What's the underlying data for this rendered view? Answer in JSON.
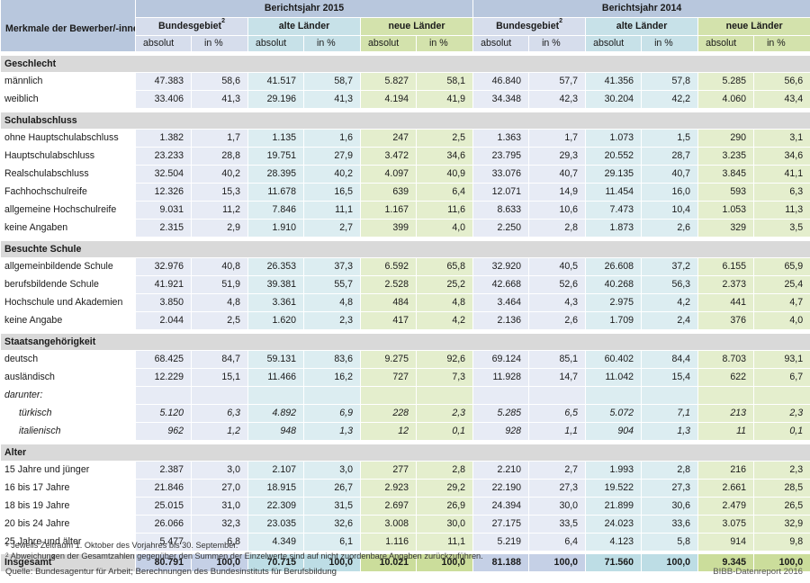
{
  "header": {
    "label_col": "Merkmale der Bewerber/-innen",
    "years": [
      "Berichtsjahr 2015",
      "Berichtsjahr 2014"
    ],
    "regions": [
      {
        "name": "Bundesgebiet",
        "sup": "2"
      },
      {
        "name": "alte Länder",
        "sup": ""
      },
      {
        "name": "neue Länder",
        "sup": ""
      }
    ],
    "abs_label": "absolut",
    "pct_label": "in %"
  },
  "sections": [
    {
      "title": "Geschlecht",
      "rows": [
        {
          "label": "männlich",
          "values": [
            "47.383",
            "58,6",
            "41.517",
            "58,7",
            "5.827",
            "58,1",
            "46.840",
            "57,7",
            "41.356",
            "57,8",
            "5.285",
            "56,6"
          ]
        },
        {
          "label": "weiblich",
          "values": [
            "33.406",
            "41,3",
            "29.196",
            "41,3",
            "4.194",
            "41,9",
            "34.348",
            "42,3",
            "30.204",
            "42,2",
            "4.060",
            "43,4"
          ]
        }
      ]
    },
    {
      "title": "Schulabschluss",
      "rows": [
        {
          "label": "ohne Hauptschulabschluss",
          "values": [
            "1.382",
            "1,7",
            "1.135",
            "1,6",
            "247",
            "2,5",
            "1.363",
            "1,7",
            "1.073",
            "1,5",
            "290",
            "3,1"
          ]
        },
        {
          "label": "Hauptschulabschluss",
          "values": [
            "23.233",
            "28,8",
            "19.751",
            "27,9",
            "3.472",
            "34,6",
            "23.795",
            "29,3",
            "20.552",
            "28,7",
            "3.235",
            "34,6"
          ]
        },
        {
          "label": "Realschulabschluss",
          "values": [
            "32.504",
            "40,2",
            "28.395",
            "40,2",
            "4.097",
            "40,9",
            "33.076",
            "40,7",
            "29.135",
            "40,7",
            "3.845",
            "41,1"
          ]
        },
        {
          "label": "Fachhochschulreife",
          "values": [
            "12.326",
            "15,3",
            "11.678",
            "16,5",
            "639",
            "6,4",
            "12.071",
            "14,9",
            "11.454",
            "16,0",
            "593",
            "6,3"
          ]
        },
        {
          "label": "allgemeine Hochschulreife",
          "values": [
            "9.031",
            "11,2",
            "7.846",
            "11,1",
            "1.167",
            "11,6",
            "8.633",
            "10,6",
            "7.473",
            "10,4",
            "1.053",
            "11,3"
          ]
        },
        {
          "label": "keine Angaben",
          "values": [
            "2.315",
            "2,9",
            "1.910",
            "2,7",
            "399",
            "4,0",
            "2.250",
            "2,8",
            "1.873",
            "2,6",
            "329",
            "3,5"
          ]
        }
      ]
    },
    {
      "title": "Besuchte Schule",
      "rows": [
        {
          "label": "allgemeinbildende Schule",
          "values": [
            "32.976",
            "40,8",
            "26.353",
            "37,3",
            "6.592",
            "65,8",
            "32.920",
            "40,5",
            "26.608",
            "37,2",
            "6.155",
            "65,9"
          ]
        },
        {
          "label": "berufsbildende Schule",
          "values": [
            "41.921",
            "51,9",
            "39.381",
            "55,7",
            "2.528",
            "25,2",
            "42.668",
            "52,6",
            "40.268",
            "56,3",
            "2.373",
            "25,4"
          ]
        },
        {
          "label": "Hochschule und Akademien",
          "values": [
            "3.850",
            "4,8",
            "3.361",
            "4,8",
            "484",
            "4,8",
            "3.464",
            "4,3",
            "2.975",
            "4,2",
            "441",
            "4,7"
          ]
        },
        {
          "label": "keine Angabe",
          "values": [
            "2.044",
            "2,5",
            "1.620",
            "2,3",
            "417",
            "4,2",
            "2.136",
            "2,6",
            "1.709",
            "2,4",
            "376",
            "4,0"
          ]
        }
      ]
    },
    {
      "title": "Staatsangehörigkeit",
      "rows": [
        {
          "label": "deutsch",
          "values": [
            "68.425",
            "84,7",
            "59.131",
            "83,6",
            "9.275",
            "92,6",
            "69.124",
            "85,1",
            "60.402",
            "84,4",
            "8.703",
            "93,1"
          ]
        },
        {
          "label": "ausländisch",
          "values": [
            "12.229",
            "15,1",
            "11.466",
            "16,2",
            "727",
            "7,3",
            "11.928",
            "14,7",
            "11.042",
            "15,4",
            "622",
            "6,7"
          ]
        },
        {
          "label": "darunter:",
          "italic": true,
          "values": [
            "",
            "",
            "",
            "",
            "",
            "",
            "",
            "",
            "",
            "",
            "",
            ""
          ]
        },
        {
          "label": "türkisch",
          "italic": true,
          "indent": true,
          "values": [
            "5.120",
            "6,3",
            "4.892",
            "6,9",
            "228",
            "2,3",
            "5.285",
            "6,5",
            "5.072",
            "7,1",
            "213",
            "2,3"
          ]
        },
        {
          "label": "italienisch",
          "italic": true,
          "indent": true,
          "values": [
            "962",
            "1,2",
            "948",
            "1,3",
            "12",
            "0,1",
            "928",
            "1,1",
            "904",
            "1,3",
            "11",
            "0,1"
          ]
        }
      ]
    },
    {
      "title": "Alter",
      "rows": [
        {
          "label": "15 Jahre und jünger",
          "values": [
            "2.387",
            "3,0",
            "2.107",
            "3,0",
            "277",
            "2,8",
            "2.210",
            "2,7",
            "1.993",
            "2,8",
            "216",
            "2,3"
          ]
        },
        {
          "label": "16 bis 17 Jahre",
          "values": [
            "21.846",
            "27,0",
            "18.915",
            "26,7",
            "2.923",
            "29,2",
            "22.190",
            "27,3",
            "19.522",
            "27,3",
            "2.661",
            "28,5"
          ]
        },
        {
          "label": "18 bis 19 Jahre",
          "values": [
            "25.015",
            "31,0",
            "22.309",
            "31,5",
            "2.697",
            "26,9",
            "24.394",
            "30,0",
            "21.899",
            "30,6",
            "2.479",
            "26,5"
          ]
        },
        {
          "label": "20 bis 24 Jahre",
          "values": [
            "26.066",
            "32,3",
            "23.035",
            "32,6",
            "3.008",
            "30,0",
            "27.175",
            "33,5",
            "24.023",
            "33,6",
            "3.075",
            "32,9"
          ]
        },
        {
          "label": "25 Jahre und älter",
          "values": [
            "5.477",
            "6,8",
            "4.349",
            "6,1",
            "1.116",
            "11,1",
            "5.219",
            "6,4",
            "4.123",
            "5,8",
            "914",
            "9,8"
          ]
        }
      ]
    }
  ],
  "total": {
    "label": "Insgesamt",
    "sup": "2",
    "values": [
      "80.791",
      "100,0",
      "70.715",
      "100,0",
      "10.021",
      "100,0",
      "81.188",
      "100,0",
      "71.560",
      "100,0",
      "9.345",
      "100,0"
    ]
  },
  "footnotes": [
    {
      "sup": "1",
      "text": "Jeweils Zeitraum 1. Oktober des Vorjahres bis 30. September."
    },
    {
      "sup": "2",
      "text": "Abweichungen der Gesamtzahlen gegenüber den Summen der Einzelwerte sind auf nicht zuordenbare Angaben zurückzuführen."
    }
  ],
  "source": "Quelle: Bundesagentur für Arbeit; Berechnungen des Bundesinstituts für Berufsbildung",
  "brand": "BIBB-Datenreport 2016",
  "colors": {
    "bund": "#e7ebf5",
    "alt": "#dcedf1",
    "neu": "#e4eecd",
    "section": "#d9d9d9"
  }
}
